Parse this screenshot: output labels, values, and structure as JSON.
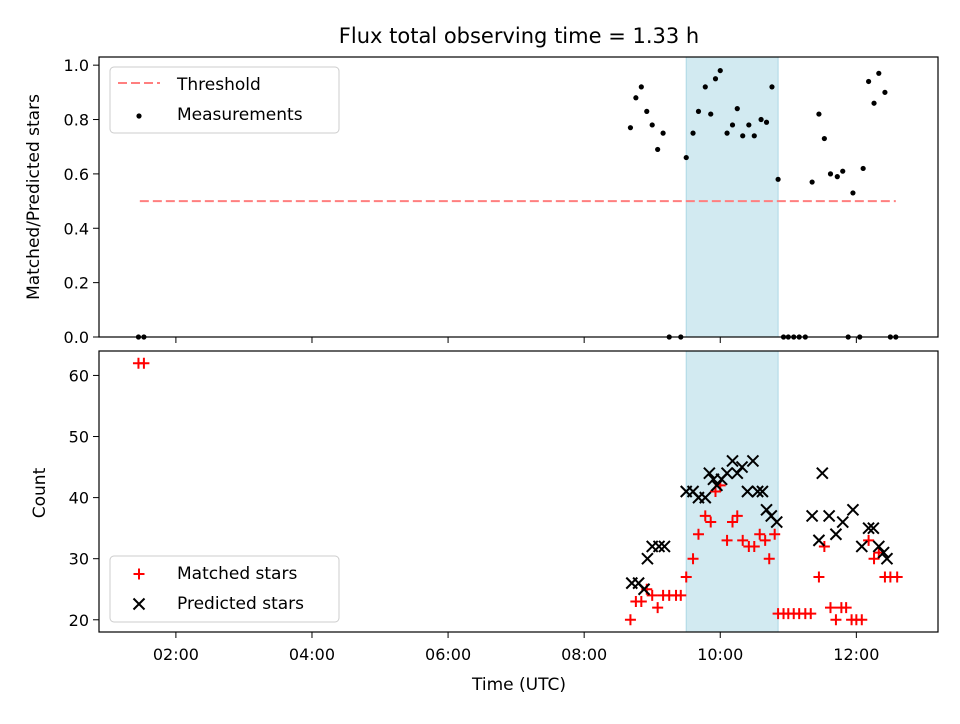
{
  "chart_data": {
    "title": "Flux total observing time = 1.33 h",
    "type": "scatter",
    "xlabel": "Time (UTC)",
    "x_tick_labels": [
      "02:00",
      "04:00",
      "06:00",
      "08:00",
      "10:00",
      "12:00"
    ],
    "x_tick_hours": [
      2,
      4,
      6,
      8,
      10,
      12
    ],
    "xlim_hours": [
      0.87,
      13.2
    ],
    "shaded_band_hours": [
      9.5,
      10.85
    ],
    "colors": {
      "shade": "#add8e6",
      "threshold": "#ff7f7f",
      "measurements": "#000000",
      "matched": "#ff0000",
      "predicted": "#000000"
    },
    "panels": [
      {
        "ylabel": "Matched/Predicted stars",
        "ylim": [
          0,
          1.03
        ],
        "y_ticks": [
          0.0,
          0.2,
          0.4,
          0.6,
          0.8,
          1.0
        ],
        "y_tick_labels": [
          "0.0",
          "0.2",
          "0.4",
          "0.6",
          "0.8",
          "1.0"
        ],
        "legend": {
          "placement": "upper-left",
          "entries": [
            "Threshold",
            "Measurements"
          ]
        },
        "threshold": {
          "name": "Threshold",
          "y": 0.5,
          "x_range": [
            1.47,
            12.58
          ]
        },
        "measurements": {
          "name": "Measurements",
          "points": [
            [
              1.45,
              0.0
            ],
            [
              1.53,
              0.0
            ],
            [
              8.68,
              0.77
            ],
            [
              8.76,
              0.88
            ],
            [
              8.84,
              0.92
            ],
            [
              8.92,
              0.83
            ],
            [
              9.0,
              0.78
            ],
            [
              9.08,
              0.69
            ],
            [
              9.16,
              0.75
            ],
            [
              9.25,
              0.0
            ],
            [
              9.42,
              0.0
            ],
            [
              9.5,
              0.66
            ],
            [
              9.6,
              0.75
            ],
            [
              9.68,
              0.83
            ],
            [
              9.78,
              0.92
            ],
            [
              9.86,
              0.82
            ],
            [
              9.93,
              0.95
            ],
            [
              10.0,
              0.98
            ],
            [
              10.1,
              0.75
            ],
            [
              10.18,
              0.78
            ],
            [
              10.25,
              0.84
            ],
            [
              10.33,
              0.74
            ],
            [
              10.42,
              0.78
            ],
            [
              10.5,
              0.74
            ],
            [
              10.6,
              0.8
            ],
            [
              10.68,
              0.79
            ],
            [
              10.76,
              0.92
            ],
            [
              10.85,
              0.58
            ],
            [
              10.93,
              0.0
            ],
            [
              11.0,
              0.0
            ],
            [
              11.08,
              0.0
            ],
            [
              11.16,
              0.0
            ],
            [
              11.25,
              0.0
            ],
            [
              11.35,
              0.57
            ],
            [
              11.45,
              0.82
            ],
            [
              11.53,
              0.73
            ],
            [
              11.62,
              0.6
            ],
            [
              11.72,
              0.59
            ],
            [
              11.8,
              0.61
            ],
            [
              11.88,
              0.0
            ],
            [
              11.95,
              0.53
            ],
            [
              12.05,
              0.0
            ],
            [
              12.1,
              0.62
            ],
            [
              12.18,
              0.94
            ],
            [
              12.26,
              0.86
            ],
            [
              12.33,
              0.97
            ],
            [
              12.42,
              0.9
            ],
            [
              12.5,
              0.0
            ],
            [
              12.58,
              0.0
            ]
          ]
        }
      },
      {
        "ylabel": "Count",
        "ylim": [
          18,
          64
        ],
        "y_ticks": [
          20,
          30,
          40,
          50,
          60
        ],
        "y_tick_labels": [
          "20",
          "30",
          "40",
          "50",
          "60"
        ],
        "legend": {
          "placement": "lower-left",
          "entries": [
            "Matched stars",
            "Predicted stars"
          ]
        },
        "series": [
          {
            "name": "Matched stars",
            "marker": "plus",
            "points": [
              [
                1.45,
                62
              ],
              [
                1.53,
                62
              ],
              [
                8.68,
                20
              ],
              [
                8.76,
                23
              ],
              [
                8.84,
                23
              ],
              [
                8.92,
                25
              ],
              [
                9.0,
                24
              ],
              [
                9.08,
                22
              ],
              [
                9.16,
                24
              ],
              [
                9.25,
                24
              ],
              [
                9.35,
                24
              ],
              [
                9.42,
                24
              ],
              [
                9.5,
                27
              ],
              [
                9.6,
                30
              ],
              [
                9.68,
                34
              ],
              [
                9.78,
                37
              ],
              [
                9.86,
                36
              ],
              [
                9.93,
                41
              ],
              [
                10.0,
                42
              ],
              [
                10.1,
                33
              ],
              [
                10.18,
                36
              ],
              [
                10.25,
                37
              ],
              [
                10.33,
                33
              ],
              [
                10.42,
                32
              ],
              [
                10.5,
                32
              ],
              [
                10.58,
                34
              ],
              [
                10.66,
                33
              ],
              [
                10.72,
                30
              ],
              [
                10.8,
                34
              ],
              [
                10.85,
                21
              ],
              [
                10.93,
                21
              ],
              [
                11.0,
                21
              ],
              [
                11.08,
                21
              ],
              [
                11.16,
                21
              ],
              [
                11.25,
                21
              ],
              [
                11.33,
                21
              ],
              [
                11.45,
                27
              ],
              [
                11.53,
                32
              ],
              [
                11.62,
                22
              ],
              [
                11.7,
                20
              ],
              [
                11.78,
                22
              ],
              [
                11.85,
                22
              ],
              [
                11.93,
                20
              ],
              [
                12.0,
                20
              ],
              [
                12.08,
                20
              ],
              [
                12.18,
                33
              ],
              [
                12.26,
                30
              ],
              [
                12.33,
                31
              ],
              [
                12.42,
                27
              ],
              [
                12.5,
                27
              ],
              [
                12.6,
                27
              ]
            ]
          },
          {
            "name": "Predicted stars",
            "marker": "x",
            "points": [
              [
                8.7,
                26
              ],
              [
                8.8,
                26
              ],
              [
                8.88,
                25
              ],
              [
                8.93,
                30
              ],
              [
                9.0,
                32
              ],
              [
                9.1,
                32
              ],
              [
                9.18,
                32
              ],
              [
                9.5,
                41
              ],
              [
                9.6,
                41
              ],
              [
                9.68,
                40
              ],
              [
                9.78,
                40
              ],
              [
                9.84,
                44
              ],
              [
                9.9,
                43
              ],
              [
                9.95,
                42
              ],
              [
                10.02,
                43
              ],
              [
                10.1,
                44
              ],
              [
                10.18,
                46
              ],
              [
                10.25,
                44
              ],
              [
                10.32,
                45
              ],
              [
                10.4,
                41
              ],
              [
                10.48,
                46
              ],
              [
                10.55,
                41
              ],
              [
                10.62,
                41
              ],
              [
                10.68,
                38
              ],
              [
                10.75,
                37
              ],
              [
                10.83,
                36
              ],
              [
                11.35,
                37
              ],
              [
                11.45,
                33
              ],
              [
                11.5,
                44
              ],
              [
                11.6,
                37
              ],
              [
                11.7,
                34
              ],
              [
                11.8,
                36
              ],
              [
                11.95,
                38
              ],
              [
                12.08,
                32
              ],
              [
                12.18,
                35
              ],
              [
                12.25,
                35
              ],
              [
                12.33,
                32
              ],
              [
                12.4,
                31
              ],
              [
                12.45,
                30
              ]
            ]
          }
        ]
      }
    ]
  }
}
